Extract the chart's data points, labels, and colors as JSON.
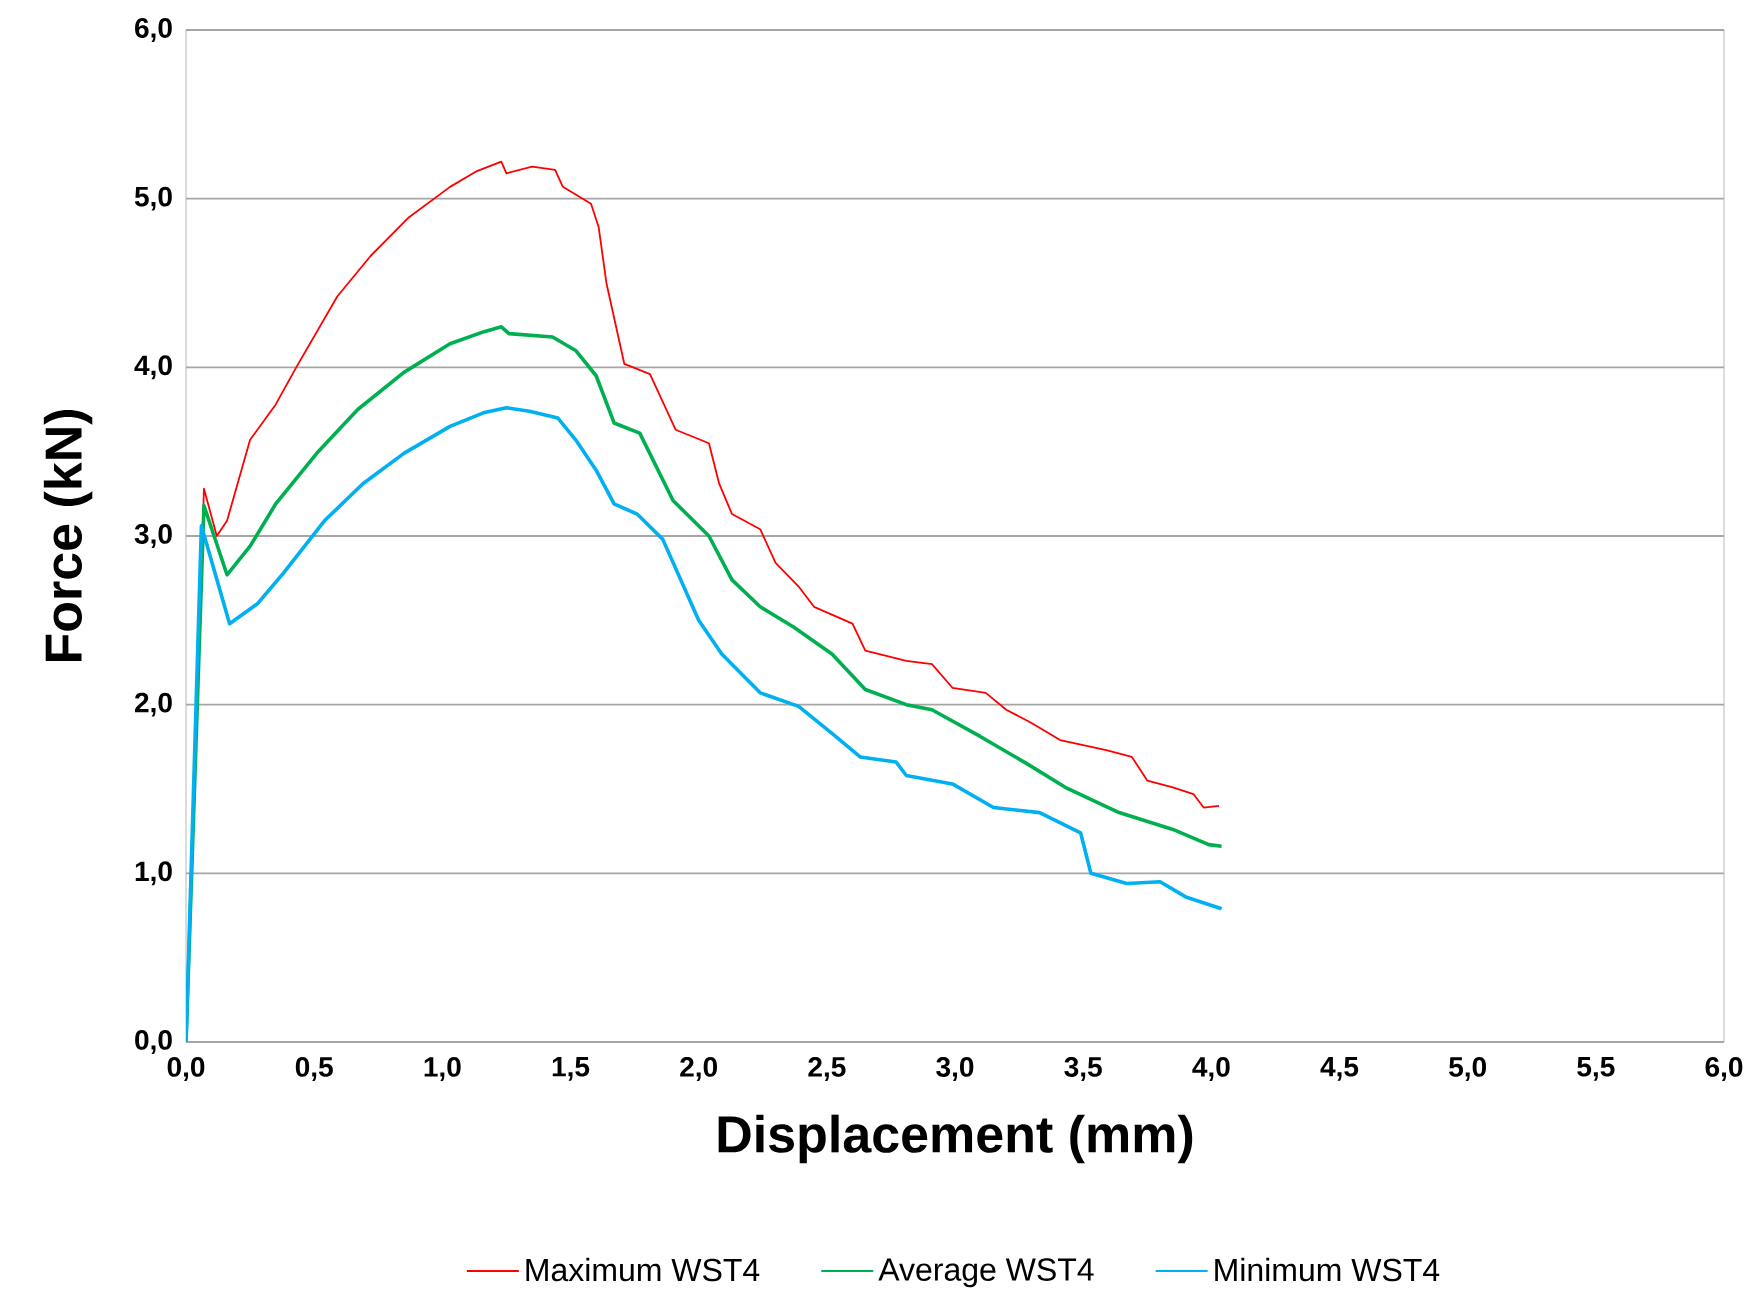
{
  "chart_data": {
    "type": "line",
    "xlabel": "Displacement (mm)",
    "ylabel": "Force (kN)",
    "xlim": [
      0,
      6
    ],
    "ylim": [
      0,
      6
    ],
    "xticks": [
      {
        "value": 0,
        "label": "0,0"
      },
      {
        "value": 0.5,
        "label": "0,5"
      },
      {
        "value": 1,
        "label": "1,0"
      },
      {
        "value": 1.5,
        "label": "1,5"
      },
      {
        "value": 2,
        "label": "2,0"
      },
      {
        "value": 2.5,
        "label": "2,5"
      },
      {
        "value": 3,
        "label": "3,0"
      },
      {
        "value": 3.5,
        "label": "3,5"
      },
      {
        "value": 4,
        "label": "4,0"
      },
      {
        "value": 4.5,
        "label": "4,5"
      },
      {
        "value": 5,
        "label": "5,0"
      },
      {
        "value": 5.5,
        "label": "5,5"
      },
      {
        "value": 6,
        "label": "6,0"
      }
    ],
    "yticks": [
      {
        "value": 0,
        "label": "0,0"
      },
      {
        "value": 1,
        "label": "1,0"
      },
      {
        "value": 2,
        "label": "2,0"
      },
      {
        "value": 3,
        "label": "3,0"
      },
      {
        "value": 4,
        "label": "4,0"
      },
      {
        "value": 5,
        "label": "5,0"
      },
      {
        "value": 6,
        "label": "6,0"
      }
    ],
    "grid": "y",
    "legend": "bottom",
    "marker": "none",
    "line_style": "solid",
    "series": [
      {
        "name": "Maximum WST4",
        "color": "#ff0000",
        "x": [
          0,
          0.07,
          0.12,
          0.16,
          0.25,
          0.35,
          0.43,
          0.59,
          0.72,
          0.87,
          1.03,
          1.13,
          1.23,
          1.25,
          1.35,
          1.44,
          1.47,
          1.58,
          1.61,
          1.64,
          1.71,
          1.81,
          1.91,
          2.04,
          2.08,
          2.13,
          2.24,
          2.3,
          2.39,
          2.45,
          2.6,
          2.65,
          2.81,
          2.91,
          2.99,
          3.12,
          3.2,
          3.3,
          3.41,
          3.59,
          3.69,
          3.75,
          3.85,
          3.93,
          3.97,
          4.03
        ],
        "values": [
          0,
          3.28,
          3.0,
          3.09,
          3.57,
          3.78,
          4.0,
          4.42,
          4.66,
          4.89,
          5.07,
          5.16,
          5.22,
          5.15,
          5.19,
          5.17,
          5.07,
          4.97,
          4.83,
          4.5,
          4.02,
          3.96,
          3.63,
          3.55,
          3.31,
          3.13,
          3.04,
          2.84,
          2.7,
          2.58,
          2.48,
          2.32,
          2.26,
          2.24,
          2.1,
          2.07,
          1.97,
          1.89,
          1.79,
          1.73,
          1.69,
          1.55,
          1.51,
          1.47,
          1.39,
          1.4
        ]
      },
      {
        "name": "Average WST4",
        "color": "#00b050",
        "x": [
          0,
          0.07,
          0.16,
          0.25,
          0.35,
          0.51,
          0.67,
          0.85,
          1.03,
          1.16,
          1.23,
          1.26,
          1.43,
          1.52,
          1.6,
          1.67,
          1.77,
          1.9,
          2.04,
          2.13,
          2.24,
          2.37,
          2.52,
          2.65,
          2.81,
          2.91,
          3.1,
          3.28,
          3.43,
          3.64,
          3.85,
          3.99,
          4.04
        ],
        "values": [
          0,
          3.18,
          2.77,
          2.94,
          3.19,
          3.49,
          3.75,
          3.97,
          4.14,
          4.21,
          4.24,
          4.2,
          4.18,
          4.1,
          3.95,
          3.67,
          3.61,
          3.21,
          3.0,
          2.74,
          2.58,
          2.46,
          2.3,
          2.09,
          2.0,
          1.97,
          1.81,
          1.65,
          1.51,
          1.36,
          1.26,
          1.17,
          1.16
        ]
      },
      {
        "name": "Minimum WST4",
        "color": "#00b0f0",
        "x": [
          0,
          0.06,
          0.17,
          0.28,
          0.38,
          0.54,
          0.69,
          0.85,
          1.03,
          1.16,
          1.25,
          1.34,
          1.45,
          1.52,
          1.6,
          1.67,
          1.76,
          1.86,
          1.93,
          2.0,
          2.09,
          2.24,
          2.39,
          2.52,
          2.63,
          2.77,
          2.81,
          2.99,
          3.15,
          3.33,
          3.49,
          3.53,
          3.67,
          3.8,
          3.9,
          4.04
        ],
        "values": [
          0,
          3.06,
          2.48,
          2.6,
          2.78,
          3.09,
          3.31,
          3.49,
          3.65,
          3.73,
          3.76,
          3.74,
          3.7,
          3.57,
          3.39,
          3.19,
          3.13,
          2.98,
          2.74,
          2.5,
          2.3,
          2.07,
          1.99,
          1.83,
          1.69,
          1.66,
          1.58,
          1.53,
          1.39,
          1.36,
          1.24,
          1.0,
          0.94,
          0.95,
          0.86,
          0.79
        ]
      }
    ]
  }
}
